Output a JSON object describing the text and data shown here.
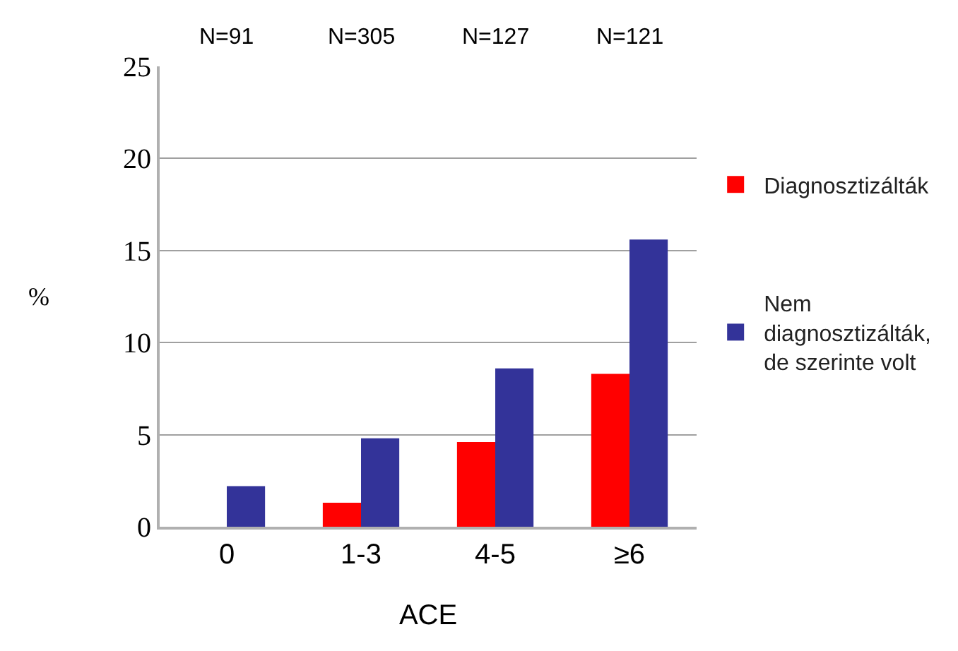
{
  "chart_data": {
    "type": "bar",
    "xlabel": "ACE",
    "ylabel": "%",
    "categories": [
      "0",
      "1-3",
      "4-5",
      "≥6"
    ],
    "series": [
      {
        "name": "Diagnosztizálták",
        "color": "#ff0000",
        "values": [
          null,
          1.3,
          4.6,
          8.3
        ]
      },
      {
        "name": "Nem diagnosztizálták, de szerinte volt",
        "color": "#333399",
        "values": [
          2.2,
          4.8,
          8.6,
          15.6
        ]
      }
    ],
    "ylim": [
      0,
      25
    ],
    "yticks": [
      0,
      5,
      10,
      15,
      20,
      25
    ],
    "grid": "y",
    "legend": "right",
    "annotations": [
      "N=91",
      "N=305",
      "N=127",
      "N=121"
    ]
  }
}
